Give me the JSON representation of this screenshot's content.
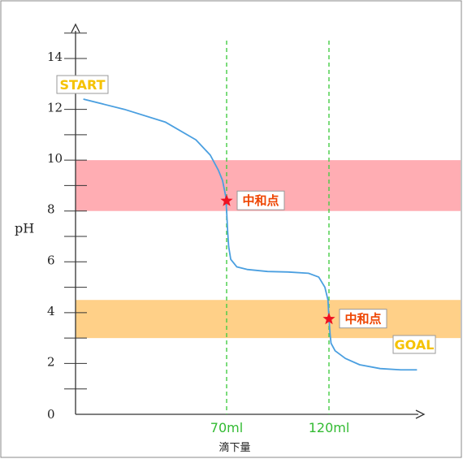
{
  "chart_data": {
    "type": "line",
    "title": "",
    "xlabel": "滴下量",
    "ylabel": "pH",
    "ylim": [
      0,
      14.8
    ],
    "y_ticks": [
      "0",
      "2",
      "4",
      "6",
      "8",
      "10",
      "12",
      "14"
    ],
    "x_ticks": [
      "70ml",
      "120ml"
    ],
    "x_tick_values": [
      70,
      120
    ],
    "xlim": [
      0,
      165
    ],
    "grid": false,
    "bands": [
      {
        "range": [
          8.0,
          10.0
        ],
        "color": "#ffadb3"
      },
      {
        "range": [
          3.0,
          4.5
        ],
        "color": "#ffd088"
      }
    ],
    "vlines": [
      {
        "x": 70,
        "color": "#44cc44"
      },
      {
        "x": 120,
        "color": "#44cc44"
      }
    ],
    "series": [
      {
        "color": "#4a9fe0",
        "points": [
          [
            0,
            12.4
          ],
          [
            20,
            12.0
          ],
          [
            40,
            11.5
          ],
          [
            55,
            10.8
          ],
          [
            62,
            10.2
          ],
          [
            66,
            9.6
          ],
          [
            68,
            9.2
          ],
          [
            69.5,
            8.6
          ],
          [
            70,
            8.0
          ],
          [
            70.5,
            7.2
          ],
          [
            71,
            6.6
          ],
          [
            72,
            6.1
          ],
          [
            75,
            5.8
          ],
          [
            80,
            5.7
          ],
          [
            90,
            5.62
          ],
          [
            100,
            5.6
          ],
          [
            110,
            5.55
          ],
          [
            115,
            5.4
          ],
          [
            118,
            5.0
          ],
          [
            119.5,
            4.5
          ],
          [
            120,
            3.8
          ],
          [
            120.5,
            3.2
          ],
          [
            121,
            2.8
          ],
          [
            123,
            2.5
          ],
          [
            128,
            2.2
          ],
          [
            135,
            1.95
          ],
          [
            145,
            1.8
          ],
          [
            155,
            1.75
          ],
          [
            163,
            1.75
          ]
        ]
      }
    ],
    "markers": [
      {
        "x": 70,
        "y": 8.4,
        "label": "中和点",
        "color": "#ee1122"
      },
      {
        "x": 120,
        "y": 3.75,
        "label": "中和点",
        "color": "#ee1122"
      }
    ],
    "annotations": [
      {
        "text": "START",
        "x": 0,
        "y": 12.4,
        "color": "#f5c200"
      },
      {
        "text": "GOAL",
        "x": 163,
        "y": 1.75,
        "color": "#f5c200"
      }
    ]
  }
}
